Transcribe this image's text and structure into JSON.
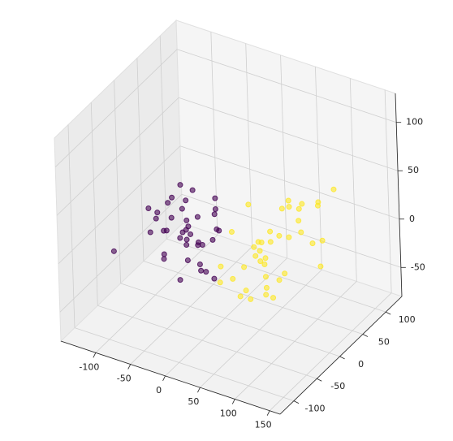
{
  "chart_data": {
    "type": "scatter3d",
    "xlim": [
      -150,
      165
    ],
    "ylim": [
      -130,
      135
    ],
    "zlim": [
      -80,
      130
    ],
    "xticks": [
      -100,
      -50,
      0,
      50,
      100,
      150
    ],
    "yticks": [
      -100,
      -50,
      0,
      50,
      100
    ],
    "zticks": [
      -50,
      0,
      50,
      100
    ],
    "grid": true,
    "series": [
      {
        "color": "#440154",
        "x": [
          -60,
          -45,
          -30,
          -80,
          -20,
          -55,
          -70,
          -35,
          -10,
          -90,
          -50,
          -25,
          -65,
          -40,
          -15,
          -75,
          -5,
          -95,
          -48,
          -33,
          -58,
          -22,
          -85,
          -42,
          -12,
          -68,
          -38,
          -52,
          -28,
          -110,
          -62,
          -18,
          -46,
          -72,
          -8,
          -36,
          -56,
          -26,
          -82,
          0
        ],
        "y": [
          -30,
          -10,
          -40,
          10,
          -20,
          20,
          -50,
          0,
          -60,
          -5,
          30,
          -35,
          5,
          -25,
          15,
          -15,
          -45,
          25,
          -55,
          35,
          -20,
          -5,
          0,
          10,
          -30,
          -40,
          40,
          -10,
          20,
          -70,
          15,
          -50,
          -25,
          30,
          0,
          -15,
          5,
          25,
          -35,
          -20
        ],
        "z": [
          10,
          -5,
          20,
          0,
          -20,
          30,
          15,
          -10,
          5,
          10,
          -30,
          25,
          -15,
          35,
          0,
          -25,
          15,
          5,
          -5,
          20,
          40,
          -35,
          -10,
          10,
          -20,
          25,
          0,
          50,
          -15,
          -5,
          20,
          30,
          -40,
          -10,
          10,
          5,
          -20,
          15,
          30,
          -30
        ]
      },
      {
        "color": "#fde725",
        "x": [
          40,
          55,
          30,
          70,
          20,
          60,
          45,
          85,
          10,
          35,
          75,
          50,
          25,
          65,
          95,
          5,
          40,
          80,
          55,
          30,
          60,
          100,
          15,
          45,
          70,
          35,
          90,
          50,
          20,
          65,
          110,
          40,
          75,
          25,
          55,
          85,
          0,
          45,
          60,
          30
        ],
        "y": [
          20,
          40,
          0,
          60,
          -10,
          30,
          10,
          80,
          -20,
          50,
          20,
          70,
          10,
          -5,
          100,
          -15,
          30,
          50,
          90,
          25,
          0,
          60,
          35,
          -10,
          40,
          15,
          80,
          55,
          5,
          110,
          30,
          45,
          -20,
          65,
          10,
          40,
          20,
          75,
          -5,
          35
        ],
        "z": [
          -10,
          0,
          -20,
          10,
          -30,
          -40,
          5,
          20,
          -15,
          -5,
          -25,
          15,
          -50,
          0,
          30,
          -35,
          -60,
          5,
          10,
          -20,
          -10,
          -30,
          25,
          -45,
          40,
          -5,
          -15,
          20,
          -55,
          5,
          10,
          -70,
          -10,
          -25,
          -40,
          35,
          0,
          -20,
          15,
          -30
        ]
      }
    ]
  }
}
